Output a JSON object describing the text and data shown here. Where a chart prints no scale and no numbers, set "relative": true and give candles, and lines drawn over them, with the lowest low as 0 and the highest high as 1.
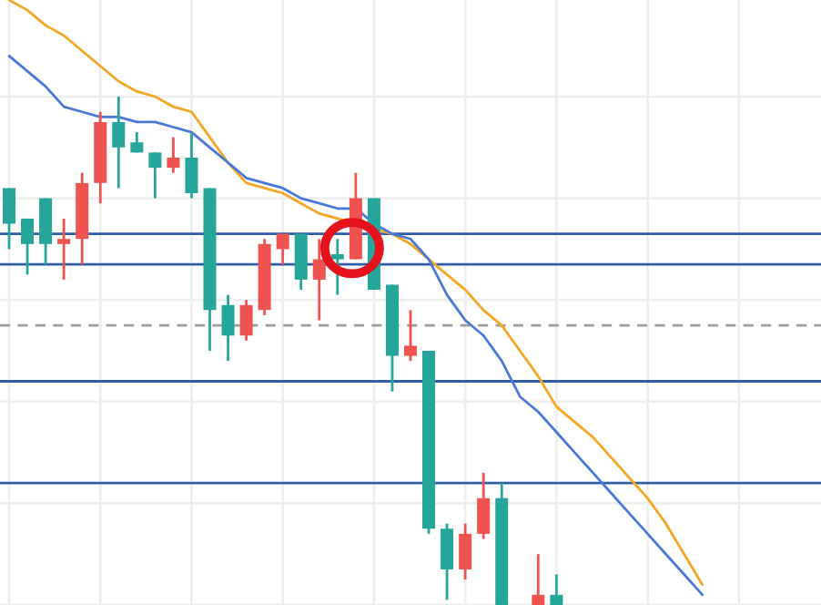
{
  "chart_data": {
    "type": "candlestick",
    "relative": true,
    "grid": true,
    "categories": [
      null,
      null,
      null,
      null,
      null,
      null,
      null,
      null,
      null,
      null,
      null,
      null,
      null,
      null,
      null,
      null,
      null,
      null,
      null,
      null,
      null,
      null,
      null,
      null,
      null,
      null,
      null,
      null,
      null,
      null,
      null,
      null,
      null,
      null,
      null,
      null,
      null,
      null,
      null,
      null,
      null,
      null,
      null,
      null,
      null
    ],
    "ohlc": [
      [
        0.82,
        0.82,
        0.7,
        0.75
      ],
      [
        0.76,
        0.76,
        0.65,
        0.71
      ],
      [
        0.8,
        0.8,
        0.67,
        0.71
      ],
      [
        0.71,
        0.76,
        0.64,
        0.72
      ],
      [
        0.72,
        0.85,
        0.67,
        0.83
      ],
      [
        0.83,
        0.97,
        0.79,
        0.95
      ],
      [
        0.95,
        1.0,
        0.82,
        0.9
      ],
      [
        0.91,
        0.93,
        0.89,
        0.89
      ],
      [
        0.89,
        0.89,
        0.8,
        0.86
      ],
      [
        0.86,
        0.92,
        0.85,
        0.88
      ],
      [
        0.88,
        0.93,
        0.8,
        0.81
      ],
      [
        0.82,
        0.82,
        0.5,
        0.58
      ],
      [
        0.59,
        0.61,
        0.48,
        0.53
      ],
      [
        0.53,
        0.6,
        0.52,
        0.59
      ],
      [
        0.58,
        0.72,
        0.57,
        0.71
      ],
      [
        0.7,
        0.73,
        0.67,
        0.73
      ],
      [
        0.73,
        0.73,
        0.62,
        0.64
      ],
      [
        0.64,
        0.72,
        0.56,
        0.68
      ],
      [
        0.69,
        0.72,
        0.61,
        0.68
      ],
      [
        0.68,
        0.85,
        0.68,
        0.8
      ],
      [
        0.8,
        0.8,
        0.62,
        0.62
      ],
      [
        0.63,
        0.63,
        0.42,
        0.49
      ],
      [
        0.49,
        0.58,
        0.48,
        0.51
      ],
      [
        0.5,
        0.5,
        0.14,
        0.15
      ],
      [
        0.15,
        0.16,
        0.01,
        0.07
      ],
      [
        0.07,
        0.16,
        0.05,
        0.14
      ],
      [
        0.14,
        0.26,
        0.13,
        0.21
      ],
      [
        0.21,
        0.24,
        0,
        0
      ],
      null,
      [
        0,
        0.1,
        0,
        0.02
      ],
      [
        0.02,
        0.06,
        0,
        0
      ],
      null,
      null,
      null,
      null,
      null,
      null,
      null,
      null,
      null,
      null,
      null,
      null,
      null,
      null
    ],
    "colors": [
      "#26a69a",
      "#26a69a",
      "#26a69a",
      "#ef5350",
      "#ef5350",
      "#ef5350",
      "#26a69a",
      "#26a69a",
      "#26a69a",
      "#ef5350",
      "#26a69a",
      "#26a69a",
      "#26a69a",
      "#ef5350",
      "#ef5350",
      "#ef5350",
      "#26a69a",
      "#ef5350",
      "#26a69a",
      "#ef5350",
      "#26a69a",
      "#26a69a",
      "#ef5350",
      "#26a69a",
      "#26a69a",
      "#ef5350",
      "#ef5350",
      "#26a69a",
      null,
      "#ef5350",
      "#26a69a",
      null,
      null,
      null,
      null,
      null,
      null,
      null,
      null,
      null,
      null,
      null,
      null,
      null,
      null
    ],
    "series": [
      {
        "type": "line",
        "color": "#f5a623",
        "values": [
          1.19,
          1.17,
          1.14,
          1.12,
          1.09,
          1.06,
          1.03,
          1.01,
          1.0,
          0.98,
          0.97,
          0.92,
          0.87,
          0.83,
          0.82,
          0.81,
          0.79,
          0.77,
          0.76,
          0.75,
          0.74,
          0.73,
          0.71,
          0.68,
          0.65,
          0.62,
          0.58,
          0.55,
          0.5,
          0.45,
          0.39,
          0.36,
          0.33,
          0.29,
          0.25,
          0.21,
          0.16,
          0.1,
          0.04,
          null,
          null,
          null,
          null,
          null,
          null
        ]
      },
      {
        "type": "line",
        "color": "#4a78d8",
        "values": [
          1.08,
          1.05,
          1.02,
          0.98,
          0.97,
          0.96,
          0.96,
          0.95,
          0.95,
          0.94,
          0.93,
          0.9,
          0.87,
          0.84,
          0.83,
          0.82,
          0.8,
          0.79,
          0.78,
          0.78,
          0.75,
          0.73,
          0.72,
          0.68,
          0.61,
          0.56,
          0.53,
          0.48,
          0.41,
          0.38,
          0.34,
          0.3,
          0.26,
          0.22,
          0.18,
          0.14,
          0.1,
          0.06,
          0.02,
          null,
          null,
          null,
          null,
          null,
          null
        ]
      }
    ],
    "ref_lines": [
      {
        "axis": "y",
        "value": 0.73,
        "color": "#2e5ea8",
        "line_style": "solid"
      },
      {
        "axis": "y",
        "value": 0.67,
        "color": "#2e5ea8",
        "line_style": "solid"
      },
      {
        "axis": "y",
        "value": 0.55,
        "color": "#9e9e9e",
        "line_style": "dashed"
      },
      {
        "axis": "y",
        "value": 0.44,
        "color": "#2e5ea8",
        "line_style": "solid"
      },
      {
        "axis": "y",
        "value": 0.24,
        "color": "#2e5ea8",
        "line_style": "solid"
      }
    ]
  }
}
